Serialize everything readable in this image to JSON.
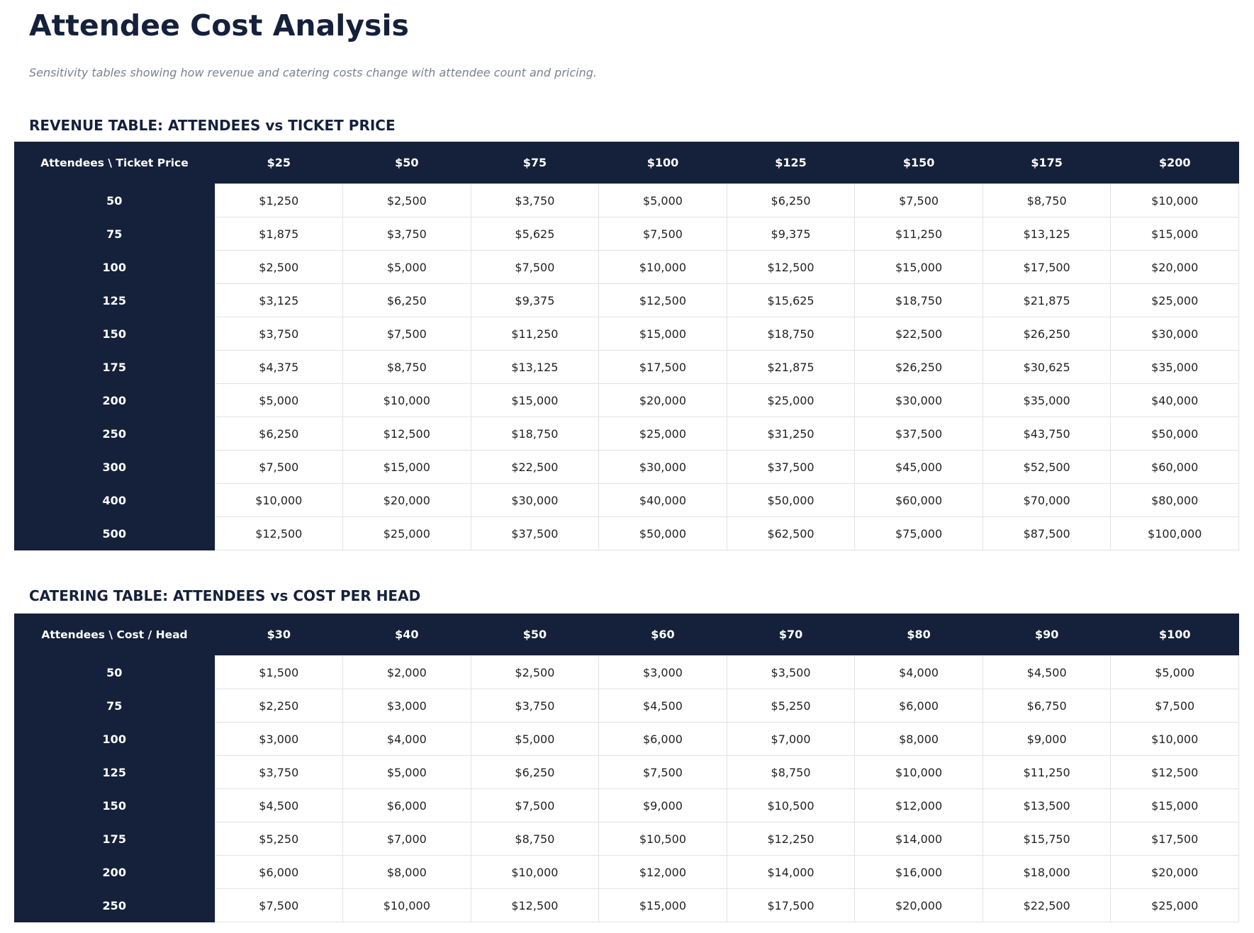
{
  "title": "Attendee Cost Analysis",
  "subtitle": "Sensitivity tables showing how revenue and catering costs change with attendee count and pricing.",
  "tables": [
    {
      "heading": "REVENUE TABLE: ATTENDEES vs TICKET PRICE",
      "corner": "Attendees \\ Ticket Price",
      "columns": [
        "$25",
        "$50",
        "$75",
        "$100",
        "$125",
        "$150",
        "$175",
        "$200"
      ],
      "rows": [
        {
          "label": "50",
          "cells": [
            "$1,250",
            "$2,500",
            "$3,750",
            "$5,000",
            "$6,250",
            "$7,500",
            "$8,750",
            "$10,000"
          ]
        },
        {
          "label": "75",
          "cells": [
            "$1,875",
            "$3,750",
            "$5,625",
            "$7,500",
            "$9,375",
            "$11,250",
            "$13,125",
            "$15,000"
          ]
        },
        {
          "label": "100",
          "cells": [
            "$2,500",
            "$5,000",
            "$7,500",
            "$10,000",
            "$12,500",
            "$15,000",
            "$17,500",
            "$20,000"
          ]
        },
        {
          "label": "125",
          "cells": [
            "$3,125",
            "$6,250",
            "$9,375",
            "$12,500",
            "$15,625",
            "$18,750",
            "$21,875",
            "$25,000"
          ]
        },
        {
          "label": "150",
          "cells": [
            "$3,750",
            "$7,500",
            "$11,250",
            "$15,000",
            "$18,750",
            "$22,500",
            "$26,250",
            "$30,000"
          ]
        },
        {
          "label": "175",
          "cells": [
            "$4,375",
            "$8,750",
            "$13,125",
            "$17,500",
            "$21,875",
            "$26,250",
            "$30,625",
            "$35,000"
          ]
        },
        {
          "label": "200",
          "cells": [
            "$5,000",
            "$10,000",
            "$15,000",
            "$20,000",
            "$25,000",
            "$30,000",
            "$35,000",
            "$40,000"
          ]
        },
        {
          "label": "250",
          "cells": [
            "$6,250",
            "$12,500",
            "$18,750",
            "$25,000",
            "$31,250",
            "$37,500",
            "$43,750",
            "$50,000"
          ]
        },
        {
          "label": "300",
          "cells": [
            "$7,500",
            "$15,000",
            "$22,500",
            "$30,000",
            "$37,500",
            "$45,000",
            "$52,500",
            "$60,000"
          ]
        },
        {
          "label": "400",
          "cells": [
            "$10,000",
            "$20,000",
            "$30,000",
            "$40,000",
            "$50,000",
            "$60,000",
            "$70,000",
            "$80,000"
          ]
        },
        {
          "label": "500",
          "cells": [
            "$12,500",
            "$25,000",
            "$37,500",
            "$50,000",
            "$62,500",
            "$75,000",
            "$87,500",
            "$100,000"
          ]
        }
      ]
    },
    {
      "heading": "CATERING TABLE: ATTENDEES vs COST PER HEAD",
      "corner": "Attendees \\ Cost / Head",
      "columns": [
        "$30",
        "$40",
        "$50",
        "$60",
        "$70",
        "$80",
        "$90",
        "$100"
      ],
      "rows": [
        {
          "label": "50",
          "cells": [
            "$1,500",
            "$2,000",
            "$2,500",
            "$3,000",
            "$3,500",
            "$4,000",
            "$4,500",
            "$5,000"
          ]
        },
        {
          "label": "75",
          "cells": [
            "$2,250",
            "$3,000",
            "$3,750",
            "$4,500",
            "$5,250",
            "$6,000",
            "$6,750",
            "$7,500"
          ]
        },
        {
          "label": "100",
          "cells": [
            "$3,000",
            "$4,000",
            "$5,000",
            "$6,000",
            "$7,000",
            "$8,000",
            "$9,000",
            "$10,000"
          ]
        },
        {
          "label": "125",
          "cells": [
            "$3,750",
            "$5,000",
            "$6,250",
            "$7,500",
            "$8,750",
            "$10,000",
            "$11,250",
            "$12,500"
          ]
        },
        {
          "label": "150",
          "cells": [
            "$4,500",
            "$6,000",
            "$7,500",
            "$9,000",
            "$10,500",
            "$12,000",
            "$13,500",
            "$15,000"
          ]
        },
        {
          "label": "175",
          "cells": [
            "$5,250",
            "$7,000",
            "$8,750",
            "$10,500",
            "$12,250",
            "$14,000",
            "$15,750",
            "$17,500"
          ]
        },
        {
          "label": "200",
          "cells": [
            "$6,000",
            "$8,000",
            "$10,000",
            "$12,000",
            "$14,000",
            "$16,000",
            "$18,000",
            "$20,000"
          ]
        },
        {
          "label": "250",
          "cells": [
            "$7,500",
            "$10,000",
            "$12,500",
            "$15,000",
            "$17,500",
            "$20,000",
            "$22,500",
            "$25,000"
          ]
        }
      ]
    }
  ]
}
